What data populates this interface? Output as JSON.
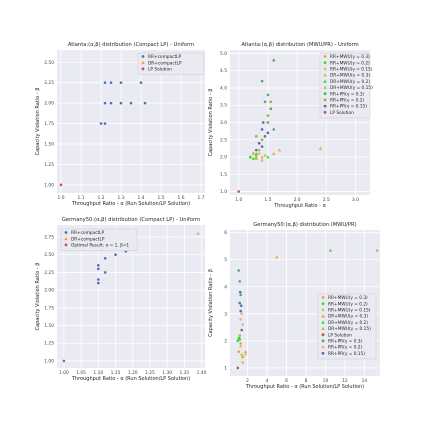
{
  "colors": {
    "panel_bg": "#eaeaf2",
    "grid": "#ffffff",
    "blue": "#4c72b0",
    "orange": "#f0a030",
    "red": "#c44e52",
    "green": "#55a868",
    "lime": "#33dd33",
    "olive": "#a8a83a",
    "yellowgreen": "#9acd32",
    "tan": "#ddb97a",
    "teal": "#3a9e8a"
  },
  "chart_data": [
    {
      "type": "scatter",
      "title": "Atlanta:(α,β) distribution (Compact LP) - Uniform",
      "xlabel": "Throughput Ratio - α (Run Solution/LP Solution)",
      "ylabel": "Capacity Violation Ratio - β",
      "xlim": [
        0.98,
        1.72
      ],
      "ylim": [
        0.9,
        2.65
      ],
      "xticks": [
        "1.0",
        "1.1",
        "1.2",
        "1.3",
        "1.4",
        "1.5",
        "1.6",
        "1.7"
      ],
      "yticks": [
        "1.00",
        "1.25",
        "1.50",
        "1.75",
        "2.00",
        "2.25",
        "2.50"
      ],
      "grid": true,
      "legend_position": "top-right",
      "series": [
        {
          "name": "RR+compactLP",
          "color_key": "blue",
          "marker": "circle",
          "points": [
            [
              1.2,
              1.75
            ],
            [
              1.22,
              1.75
            ],
            [
              1.22,
              2.0
            ],
            [
              1.25,
              2.0
            ],
            [
              1.22,
              2.25
            ],
            [
              1.25,
              2.25
            ],
            [
              1.3,
              2.25
            ],
            [
              1.3,
              2.0
            ],
            [
              1.35,
              2.0
            ],
            [
              1.4,
              2.25
            ],
            [
              1.42,
              2.0
            ]
          ]
        },
        {
          "name": "DR+compactLP",
          "color_key": "orange",
          "marker": "triangle",
          "points": [
            [
              1.7,
              2.5
            ]
          ]
        },
        {
          "name": "LP Solution",
          "color_key": "red",
          "marker": "circle",
          "points": [
            [
              1.0,
              1.0
            ]
          ]
        }
      ]
    },
    {
      "type": "scatter",
      "title": "Atlanta:(α,β) distribution (MWU/PR) - Uniform",
      "xlabel": "Throughput Ratio - α",
      "ylabel": "Capacity Violation Ratio - β",
      "xlim": [
        0.85,
        3.25
      ],
      "ylim": [
        0.9,
        5.1
      ],
      "xticks": [
        "1.0",
        "1.5",
        "2.0",
        "2.5",
        "3.0"
      ],
      "yticks": [
        "1.0",
        "1.5",
        "2.0",
        "2.5",
        "3.0",
        "3.5",
        "4.0",
        "4.5",
        "5.0"
      ],
      "grid": true,
      "legend_position": "top-right",
      "series": [
        {
          "name": "RR+MWU(γ = 0.3)",
          "color_key": "orange",
          "marker": "circle",
          "points": [
            [
              1.2,
              2.0
            ],
            [
              1.25,
              2.1
            ],
            [
              1.3,
              1.95
            ],
            [
              1.35,
              2.2
            ]
          ]
        },
        {
          "name": "RR+MWU(γ = 0.2)",
          "color_key": "lime",
          "marker": "circle",
          "points": [
            [
              1.2,
              2.0
            ],
            [
              1.25,
              1.95
            ],
            [
              1.3,
              2.05
            ]
          ]
        },
        {
          "name": "RR+MWU(γ = 0.15)",
          "color_key": "tan",
          "marker": "circle",
          "points": [
            [
              1.3,
              2.0
            ],
            [
              1.35,
              2.1
            ],
            [
              1.4,
              1.9
            ]
          ]
        },
        {
          "name": "DR+MWU(γ = 0.3)",
          "color_key": "orange",
          "marker": "triangle",
          "points": [
            [
              1.6,
              2.1
            ],
            [
              1.7,
              2.2
            ],
            [
              2.4,
              2.25
            ],
            [
              1.4,
              2.0
            ]
          ]
        },
        {
          "name": "DR+MWU(γ = 0.2)",
          "color_key": "lime",
          "marker": "triangle",
          "points": [
            [
              1.2,
              2.0
            ],
            [
              1.3,
              2.1
            ],
            [
              1.5,
              2.0
            ]
          ]
        },
        {
          "name": "DR+MWU(γ = 0.15)",
          "color_key": "yellowgreen",
          "marker": "triangle",
          "points": [
            [
              1.3,
              2.0
            ],
            [
              1.45,
              2.05
            ]
          ]
        },
        {
          "name": "RR+PR(γ = 0.3)",
          "color_key": "green",
          "marker": "circle",
          "points": [
            [
              1.4,
              4.2
            ],
            [
              1.5,
              3.8
            ],
            [
              1.45,
              3.6
            ],
            [
              1.55,
              3.4
            ],
            [
              1.5,
              3.0
            ],
            [
              1.6,
              4.8
            ],
            [
              1.6,
              2.8
            ]
          ]
        },
        {
          "name": "RR+PR(γ = 0.2)",
          "color_key": "olive",
          "marker": "circle",
          "points": [
            [
              1.3,
              2.6
            ],
            [
              1.35,
              2.4
            ],
            [
              1.4,
              2.5
            ],
            [
              1.5,
              3.2
            ],
            [
              1.55,
              3.6
            ]
          ]
        },
        {
          "name": "RR+PR(γ = 0.15)",
          "color_key": "blue",
          "marker": "circle",
          "points": [
            [
              1.3,
              2.2
            ],
            [
              1.35,
              2.4
            ],
            [
              1.4,
              2.8
            ],
            [
              1.42,
              3.0
            ],
            [
              1.45,
              2.6
            ],
            [
              1.5,
              2.7
            ],
            [
              1.4,
              2.3
            ]
          ]
        },
        {
          "name": "LP Solution",
          "color_key": "red",
          "marker": "circle",
          "points": [
            [
              1.0,
              1.0
            ]
          ]
        }
      ]
    },
    {
      "type": "scatter",
      "title": "Germany50:(α,β) distribution (Compact LP) - Uniform",
      "xlabel": "Throughput Ratio - α (Run Solution/LP Solution)",
      "ylabel": "Capacity Violation Ratio - β",
      "xlim": [
        0.98,
        1.41
      ],
      "ylim": [
        0.9,
        2.92
      ],
      "xticks": [
        "1.00",
        "1.05",
        "1.10",
        "1.15",
        "1.20",
        "1.25",
        "1.30",
        "1.35",
        "1.40"
      ],
      "yticks": [
        "1.00",
        "1.25",
        "1.50",
        "1.75",
        "2.00",
        "2.25",
        "2.50",
        "2.75"
      ],
      "grid": true,
      "legend_position": "top-left",
      "series": [
        {
          "name": "RR+compactLP",
          "color_key": "blue",
          "marker": "circle",
          "points": [
            [
              1.1,
              2.1
            ],
            [
              1.1,
              2.15
            ],
            [
              1.1,
              2.3
            ],
            [
              1.1,
              2.35
            ],
            [
              1.12,
              2.25
            ],
            [
              1.12,
              2.45
            ],
            [
              1.15,
              2.5
            ],
            [
              1.18,
              2.55
            ]
          ]
        },
        {
          "name": "DR+compactLP",
          "color_key": "orange",
          "marker": "triangle",
          "points": [
            [
              1.39,
              2.8
            ]
          ]
        },
        {
          "name": "Optimal Result: α = 1, β=1",
          "color_key": "red",
          "marker": "circle",
          "points": [
            [
              1.0,
              1.0
            ]
          ]
        }
      ]
    },
    {
      "type": "scatter",
      "title": "Germany50:(α,β) distribution (MWU/PR)",
      "xlabel": "Throughput Ratio - α (Run Solution/LP Solution)",
      "ylabel": "Capacity Violation Ratio - β",
      "xlim": [
        0.2,
        15.6
      ],
      "ylim": [
        0.7,
        6.1
      ],
      "xticks": [
        "2",
        "4",
        "6",
        "8",
        "10",
        "12",
        "14"
      ],
      "yticks": [
        "1",
        "2",
        "3",
        "4",
        "5",
        "6"
      ],
      "grid": true,
      "legend_position": "right",
      "series": [
        {
          "name": "RR+MWU(γ = 0.3)",
          "color_key": "orange",
          "marker": "circle",
          "points": [
            [
              1.1,
              1.6
            ],
            [
              1.3,
              1.9
            ],
            [
              1.5,
              1.4
            ],
            [
              1.2,
              2.2
            ]
          ]
        },
        {
          "name": "RR+MWU(γ = 0.2)",
          "color_key": "lime",
          "marker": "circle",
          "points": [
            [
              1.0,
              2.0
            ],
            [
              1.1,
              2.1
            ],
            [
              1.2,
              2.05
            ]
          ]
        },
        {
          "name": "RR+MWU(γ = 0.15)",
          "color_key": "tan",
          "marker": "circle",
          "points": [
            [
              1.5,
              1.2
            ],
            [
              1.8,
              1.5
            ],
            [
              1.3,
              1.8
            ]
          ]
        },
        {
          "name": "DR+MWU(γ = 0.3)",
          "color_key": "orange",
          "marker": "triangle",
          "points": [
            [
              5.0,
              5.1
            ],
            [
              15.3,
              5.35
            ],
            [
              1.8,
              1.6
            ]
          ]
        },
        {
          "name": "DR+MWU(γ = 0.2)",
          "color_key": "lime",
          "marker": "triangle",
          "points": [
            [
              10.5,
              5.35
            ],
            [
              1.2,
              2.1
            ]
          ]
        },
        {
          "name": "DR+MWU(γ = 0.15)",
          "color_key": "yellowgreen",
          "marker": "triangle",
          "points": [
            [
              1.4,
              1.5
            ]
          ]
        },
        {
          "name": "LP Solution",
          "color_key": "red",
          "marker": "circle",
          "points": [
            [
              1.0,
              1.0
            ]
          ]
        },
        {
          "name": "RR+PR(γ = 0.3)",
          "color_key": "green",
          "marker": "circle",
          "points": [
            [
              1.1,
              4.6
            ],
            [
              1.2,
              4.2
            ],
            [
              1.3,
              3.7
            ]
          ]
        },
        {
          "name": "RR+PR(γ = 0.2)",
          "color_key": "tan",
          "marker": "circle",
          "points": [
            [
              1.4,
              3.0
            ],
            [
              1.5,
              2.6
            ],
            [
              1.3,
              2.8
            ]
          ]
        },
        {
          "name": "RR+PR(γ = 0.15)",
          "color_key": "blue",
          "marker": "circle",
          "points": [
            [
              1.2,
              3.4
            ],
            [
              1.3,
              3.1
            ],
            [
              1.4,
              2.4
            ],
            [
              1.25,
              3.8
            ],
            [
              1.35,
              3.3
            ]
          ]
        }
      ]
    }
  ]
}
